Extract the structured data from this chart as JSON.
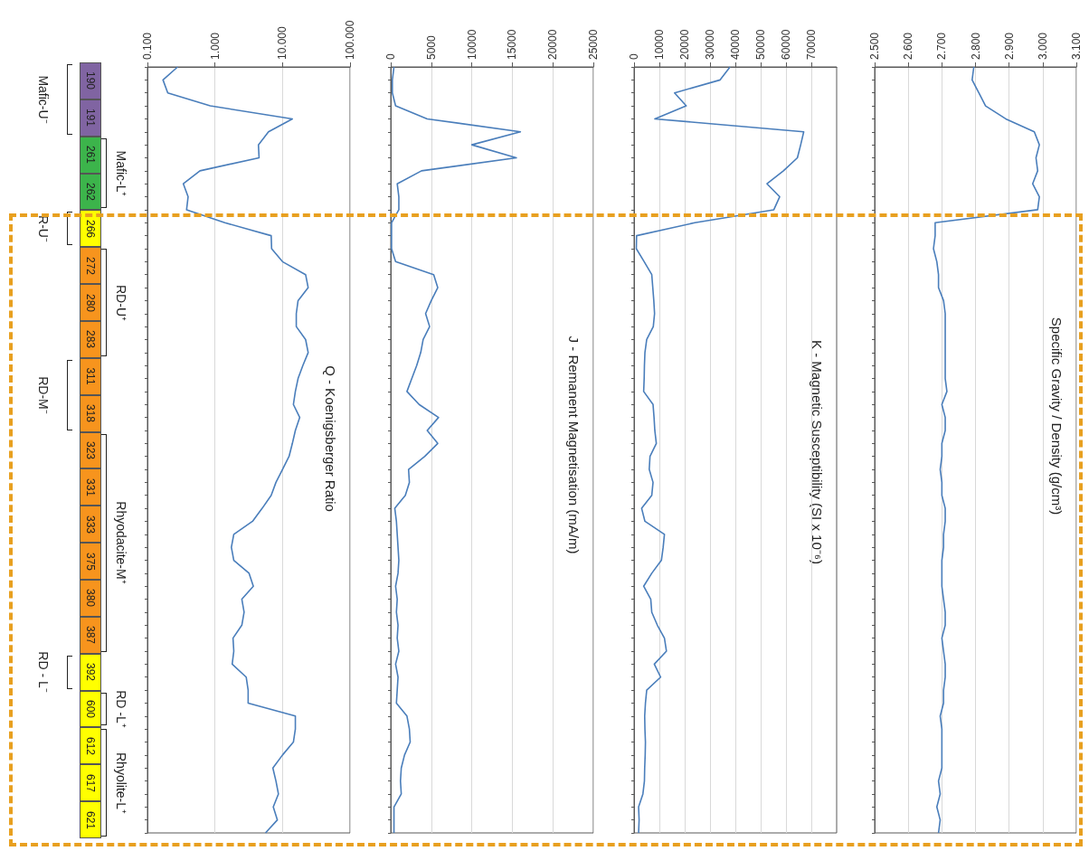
{
  "chart_data": [
    {
      "type": "line",
      "orientation": "horizontal",
      "title": "Specific Gravity / Density (g/cm³)",
      "color": "#4a7ebb",
      "grid": "x",
      "categories": [
        null,
        null,
        null,
        null,
        null,
        null,
        null,
        null,
        null,
        null,
        null,
        null,
        null,
        null,
        null,
        null,
        null,
        null,
        null,
        null,
        null,
        null,
        null,
        null,
        null,
        null,
        null,
        null,
        null,
        null,
        null,
        null,
        null,
        null,
        null,
        null,
        null,
        null,
        null,
        null,
        null,
        null,
        null,
        null,
        null,
        null,
        null,
        null,
        null,
        null,
        null,
        null,
        null,
        null,
        null,
        null,
        null,
        null,
        null,
        null
      ],
      "values": [
        2.795,
        2.79,
        2.81,
        2.83,
        2.89,
        2.975,
        2.99,
        2.98,
        2.985,
        2.97,
        2.99,
        2.985,
        2.68,
        2.68,
        2.675,
        2.685,
        2.69,
        2.69,
        2.705,
        2.71,
        2.71,
        2.71,
        2.71,
        2.71,
        2.71,
        2.715,
        2.7,
        2.71,
        2.71,
        2.7,
        2.7,
        2.695,
        2.7,
        2.7,
        2.71,
        2.71,
        2.705,
        2.705,
        2.7,
        2.7,
        2.7,
        2.705,
        2.71,
        2.71,
        2.7,
        2.705,
        2.71,
        2.71,
        2.705,
        2.705,
        2.695,
        2.7,
        2.7,
        2.7,
        2.7,
        2.69,
        2.695,
        2.685,
        2.695,
        2.69
      ],
      "xlim": [
        2.5,
        3.1
      ],
      "xticks": [
        {
          "value": 2.5,
          "label": "2.500"
        },
        {
          "value": 2.6,
          "label": "2.600"
        },
        {
          "value": 2.7,
          "label": "2.700"
        },
        {
          "value": 2.8,
          "label": "2.800"
        },
        {
          "value": 2.9,
          "label": "2.900"
        },
        {
          "value": 3.0,
          "label": "3.000"
        },
        {
          "value": 3.1,
          "label": "3.100"
        }
      ]
    },
    {
      "type": "line",
      "orientation": "horizontal",
      "title": "K - Magnetic Susceptibility (SI x 10⁻⁶)",
      "color": "#4a7ebb",
      "grid": "x",
      "categories": [
        null,
        null,
        null,
        null,
        null,
        null,
        null,
        null,
        null,
        null,
        null,
        null,
        null,
        null,
        null,
        null,
        null,
        null,
        null,
        null,
        null,
        null,
        null,
        null,
        null,
        null,
        null,
        null,
        null,
        null,
        null,
        null,
        null,
        null,
        null,
        null,
        null,
        null,
        null,
        null,
        null,
        null,
        null,
        null,
        null,
        null,
        null,
        null,
        null,
        null,
        null,
        null,
        null,
        null,
        null,
        null,
        null,
        null,
        null,
        null
      ],
      "values": [
        37900,
        34000,
        16000,
        20600,
        8200,
        67000,
        65800,
        64500,
        59000,
        52500,
        57500,
        55200,
        24000,
        1000,
        900,
        4000,
        7000,
        7400,
        7800,
        8100,
        7600,
        5000,
        4300,
        4100,
        4000,
        3800,
        7500,
        7900,
        8200,
        8800,
        6300,
        6000,
        7500,
        7000,
        3000,
        4300,
        12000,
        11500,
        10800,
        7000,
        3800,
        6600,
        7000,
        9200,
        12000,
        12800,
        8000,
        10500,
        5000,
        4500,
        4200,
        4300,
        4500,
        4400,
        4200,
        4100,
        3500,
        1800,
        2000,
        1800
      ],
      "xlim": [
        0,
        80000
      ],
      "xticks": [
        0,
        10000,
        20000,
        30000,
        40000,
        50000,
        60000,
        70000
      ]
    },
    {
      "type": "line",
      "orientation": "horizontal",
      "title": "J - Remanent Magnetisation (mA/m)",
      "color": "#4a7ebb",
      "grid": "x",
      "categories": [
        null,
        null,
        null,
        null,
        null,
        null,
        null,
        null,
        null,
        null,
        null,
        null,
        null,
        null,
        null,
        null,
        null,
        null,
        null,
        null,
        null,
        null,
        null,
        null,
        null,
        null,
        null,
        null,
        null,
        null,
        null,
        null,
        null,
        null,
        null,
        null,
        null,
        null,
        null,
        null,
        null,
        null,
        null,
        null,
        null,
        null,
        null,
        null,
        null,
        null,
        null,
        null,
        null,
        null,
        null,
        null,
        null,
        null,
        null,
        null
      ],
      "values": [
        400,
        200,
        200,
        600,
        4500,
        16000,
        10000,
        15500,
        3800,
        800,
        1000,
        1000,
        100,
        100,
        100,
        600,
        5300,
        5800,
        5000,
        4300,
        4800,
        4000,
        3700,
        3200,
        2600,
        2000,
        3500,
        5900,
        4500,
        5800,
        4200,
        2200,
        2300,
        1800,
        500,
        700,
        800,
        900,
        1000,
        900,
        600,
        800,
        700,
        900,
        800,
        1000,
        600,
        900,
        800,
        700,
        2000,
        2300,
        2400,
        1700,
        1300,
        1200,
        1300,
        400,
        400,
        400
      ],
      "xlim": [
        0,
        25000
      ],
      "xticks": [
        0,
        5000,
        10000,
        15000,
        20000,
        25000
      ]
    },
    {
      "type": "line",
      "orientation": "horizontal",
      "title": "Q - Koenigsberger Ratio",
      "color": "#4a7ebb",
      "grid": "x",
      "log": "x",
      "categories": [
        null,
        null,
        null,
        null,
        null,
        null,
        null,
        null,
        null,
        null,
        null,
        null,
        null,
        null,
        null,
        null,
        null,
        null,
        null,
        null,
        null,
        null,
        null,
        null,
        null,
        null,
        null,
        null,
        null,
        null,
        null,
        null,
        null,
        null,
        null,
        null,
        null,
        null,
        null,
        null,
        null,
        null,
        null,
        null,
        null,
        null,
        null,
        null,
        null,
        null,
        null,
        null,
        null,
        null,
        null,
        null,
        null,
        null,
        null,
        null
      ],
      "values": [
        0.28,
        0.17,
        0.2,
        0.85,
        14,
        6.2,
        4.4,
        4.5,
        0.6,
        0.34,
        0.4,
        0.38,
        1.4,
        6.8,
        6.9,
        10,
        22,
        24,
        17,
        16,
        16,
        22,
        24,
        20,
        17,
        15.5,
        14.5,
        18,
        15.5,
        14,
        12.5,
        10,
        8,
        6.8,
        5,
        3.6,
        1.9,
        1.75,
        1.9,
        3.2,
        3.7,
        2.5,
        2.7,
        2.5,
        1.85,
        1.9,
        1.8,
        2.9,
        3.1,
        3.1,
        15.5,
        15.5,
        14.5,
        10,
        7.2,
        8,
        8.7,
        7.3,
        8.4,
        5.6
      ],
      "xlim": [
        0.1,
        100
      ],
      "xticks": [
        {
          "value": 0.1,
          "label": "0.100"
        },
        {
          "value": 1,
          "label": "1.000"
        },
        {
          "value": 10,
          "label": "10.000"
        },
        {
          "value": 100,
          "label": "100.000"
        }
      ]
    },
    {
      "type": "other",
      "categories": [
        "190",
        "191",
        "261",
        "262",
        "266",
        "272",
        "280",
        "283",
        "311",
        "318",
        "323",
        "331",
        "333",
        "375",
        "380",
        "387",
        "392",
        "600",
        "612",
        "617",
        "621"
      ],
      "colors": [
        "#8064a2",
        "#8064a2",
        "#3cb44b",
        "#3cb44b",
        "#ffff00",
        "#f7941d",
        "#f7941d",
        "#f7941d",
        "#f7941d",
        "#f7941d",
        "#f7941d",
        "#f7941d",
        "#f7941d",
        "#f7941d",
        "#f7941d",
        "#f7941d",
        "#ffff00",
        "#ffff00",
        "#ffff00",
        "#ffff00",
        "#ffff00"
      ],
      "annotations": [
        "Mafic-U⁻",
        "Mafic-L⁺",
        "R-U⁻",
        "RD-U⁺",
        "RD-M⁻",
        "Rhyodacite-M⁺",
        "RD - L⁻",
        "RD -L⁺",
        "Rhyolite-L⁺"
      ]
    }
  ]
}
